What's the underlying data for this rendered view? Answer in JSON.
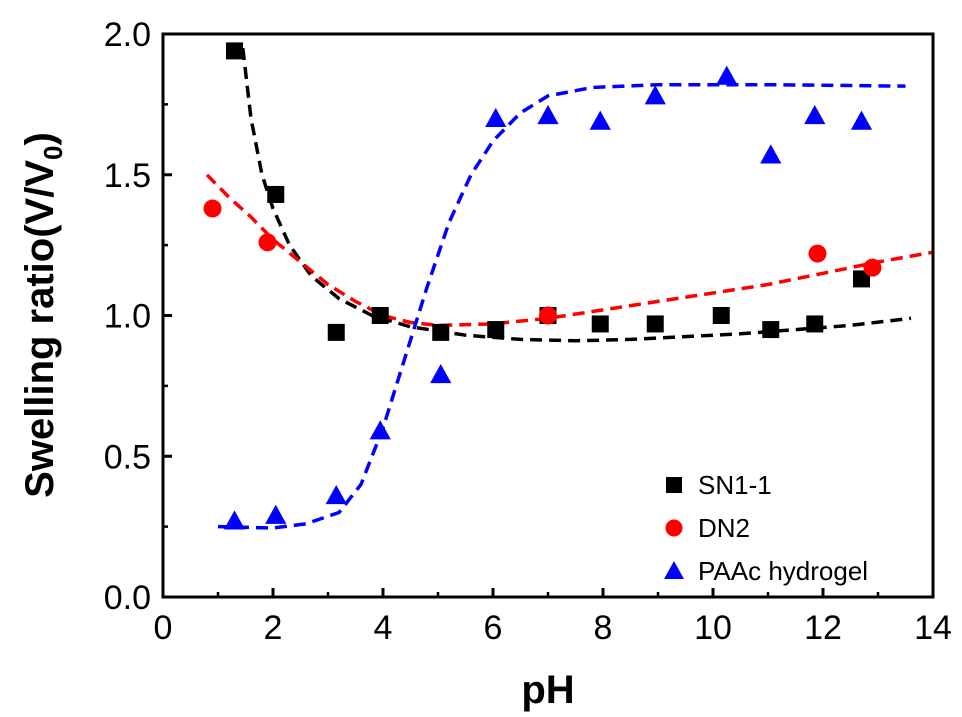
{
  "chart_data": {
    "type": "scatter",
    "title": "",
    "xlabel": "pH",
    "ylabel": "Swelling ratio(V/V",
    "ylabel_subscript": "0",
    "ylabel_suffix": ")",
    "xlim": [
      0,
      14
    ],
    "ylim": [
      0.0,
      2.0
    ],
    "x_ticks": [
      "0",
      "2",
      "4",
      "6",
      "8",
      "10",
      "12",
      "14"
    ],
    "y_ticks": [
      "0.0",
      "0.5",
      "1.0",
      "1.5",
      "2.0"
    ],
    "grid": false,
    "legend_position": "bottom-right",
    "series": [
      {
        "name": "SN1-1",
        "marker": "square",
        "color": "#000000",
        "points": [
          [
            1.3,
            1.94
          ],
          [
            2.05,
            1.43
          ],
          [
            3.15,
            0.94
          ],
          [
            3.95,
            1.0
          ],
          [
            5.05,
            0.94
          ],
          [
            6.05,
            0.95
          ],
          [
            7.0,
            1.0
          ],
          [
            7.95,
            0.97
          ],
          [
            8.95,
            0.97
          ],
          [
            10.15,
            1.0
          ],
          [
            11.05,
            0.95
          ],
          [
            11.85,
            0.97
          ],
          [
            12.7,
            1.13
          ]
        ],
        "fit": [
          [
            1.45,
            1.95
          ],
          [
            1.6,
            1.7
          ],
          [
            1.8,
            1.5
          ],
          [
            2.0,
            1.38
          ],
          [
            2.3,
            1.25
          ],
          [
            2.7,
            1.14
          ],
          [
            3.2,
            1.06
          ],
          [
            3.8,
            1.0
          ],
          [
            4.5,
            0.96
          ],
          [
            5.5,
            0.93
          ],
          [
            6.5,
            0.915
          ],
          [
            7.5,
            0.91
          ],
          [
            8.5,
            0.915
          ],
          [
            9.5,
            0.925
          ],
          [
            10.5,
            0.935
          ],
          [
            11.5,
            0.95
          ],
          [
            12.5,
            0.965
          ],
          [
            13.6,
            0.99
          ]
        ]
      },
      {
        "name": "DN2",
        "marker": "circle",
        "color": "#ff0000",
        "points": [
          [
            0.9,
            1.38
          ],
          [
            1.9,
            1.26
          ],
          [
            7.0,
            1.0
          ],
          [
            11.9,
            1.22
          ],
          [
            12.9,
            1.17
          ]
        ],
        "fit": [
          [
            0.8,
            1.5
          ],
          [
            1.2,
            1.42
          ],
          [
            1.6,
            1.35
          ],
          [
            2.0,
            1.27
          ],
          [
            2.5,
            1.19
          ],
          [
            3.0,
            1.11
          ],
          [
            3.5,
            1.05
          ],
          [
            4.0,
            1.0
          ],
          [
            4.5,
            0.975
          ],
          [
            5.0,
            0.965
          ],
          [
            6.0,
            0.97
          ],
          [
            7.0,
            0.99
          ],
          [
            8.0,
            1.02
          ],
          [
            9.0,
            1.05
          ],
          [
            10.0,
            1.08
          ],
          [
            11.0,
            1.11
          ],
          [
            12.0,
            1.15
          ],
          [
            13.0,
            1.19
          ],
          [
            14.0,
            1.225
          ]
        ]
      },
      {
        "name": "PAAc hydrogel",
        "marker": "triangle",
        "color": "#0000ff",
        "points": [
          [
            1.3,
            0.27
          ],
          [
            2.05,
            0.29
          ],
          [
            3.15,
            0.36
          ],
          [
            3.95,
            0.59
          ],
          [
            5.05,
            0.79
          ],
          [
            6.05,
            1.7
          ],
          [
            7.0,
            1.71
          ],
          [
            7.95,
            1.69
          ],
          [
            8.95,
            1.78
          ],
          [
            10.25,
            1.85
          ],
          [
            11.05,
            1.57
          ],
          [
            11.85,
            1.71
          ],
          [
            12.7,
            1.69
          ]
        ],
        "fit": [
          [
            1.0,
            0.25
          ],
          [
            2.0,
            0.245
          ],
          [
            2.6,
            0.26
          ],
          [
            3.2,
            0.3
          ],
          [
            3.6,
            0.4
          ],
          [
            4.0,
            0.6
          ],
          [
            4.4,
            0.85
          ],
          [
            4.8,
            1.1
          ],
          [
            5.2,
            1.33
          ],
          [
            5.6,
            1.5
          ],
          [
            6.0,
            1.62
          ],
          [
            6.5,
            1.72
          ],
          [
            7.0,
            1.78
          ],
          [
            7.8,
            1.81
          ],
          [
            9.0,
            1.82
          ],
          [
            11.0,
            1.82
          ],
          [
            13.5,
            1.815
          ]
        ]
      }
    ]
  }
}
